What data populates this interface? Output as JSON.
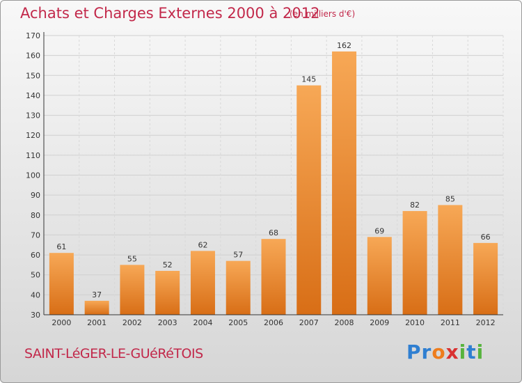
{
  "title": "Achats et Charges Externes 2000 à 2012",
  "subtitle": "(en milliers d'€)",
  "location": "SAINT-LéGER-LE-GUéRéTOIS",
  "brand": {
    "letters": [
      "P",
      "r",
      "o",
      "x",
      "i",
      "t",
      "i"
    ],
    "colors": [
      "#2f7fd1",
      "#2f7fd1",
      "#ee7d1d",
      "#d93131",
      "#57b33e",
      "#2f7fd1",
      "#57b33e"
    ]
  },
  "colors": {
    "bar_light": "#f7a856",
    "bar_dark": "#d86e16",
    "title": "#c2284a",
    "axis_text": "#333333"
  },
  "chart_data": {
    "type": "bar",
    "categories": [
      "2000",
      "2001",
      "2002",
      "2003",
      "2004",
      "2005",
      "2006",
      "2007",
      "2008",
      "2009",
      "2010",
      "2011",
      "2012"
    ],
    "values": [
      61,
      37,
      55,
      52,
      62,
      57,
      68,
      145,
      162,
      69,
      82,
      85,
      66
    ],
    "ylim": [
      30,
      170
    ],
    "yticks": [
      30,
      40,
      50,
      60,
      70,
      80,
      90,
      100,
      110,
      120,
      130,
      140,
      150,
      160,
      170
    ],
    "grid": true,
    "data_labels": true
  }
}
